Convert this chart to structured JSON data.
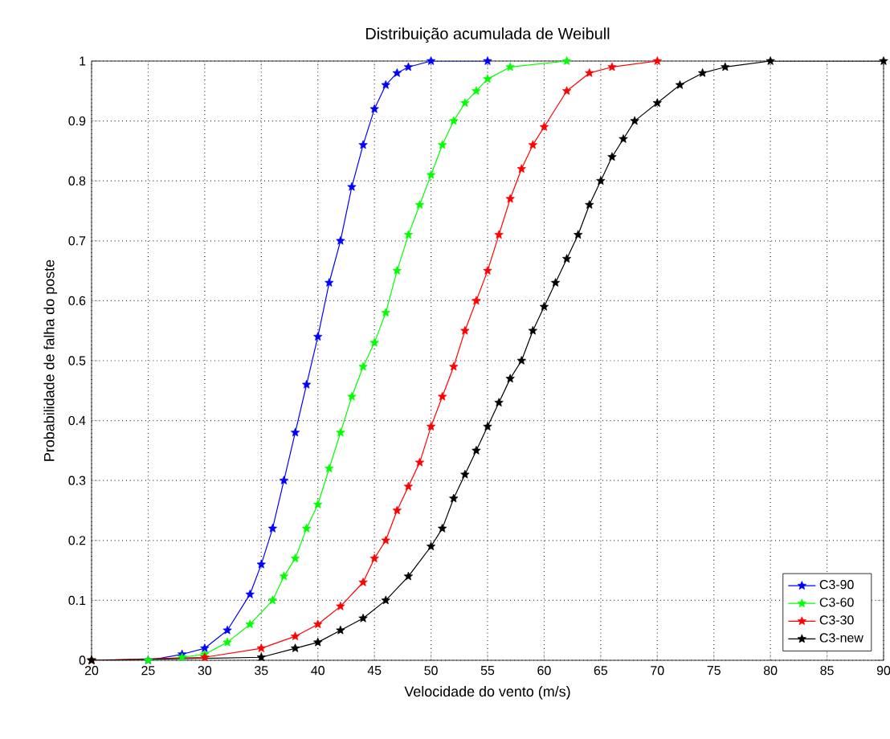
{
  "chart_data": {
    "type": "line",
    "title": "Distribuição acumulada de Weibull",
    "xlabel": "Velocidade do vento (m/s)",
    "ylabel": "Probabilidade de falha do poste",
    "xlim": [
      20,
      90
    ],
    "xticks": [
      20,
      25,
      30,
      35,
      40,
      45,
      50,
      55,
      60,
      65,
      70,
      75,
      80,
      85,
      90
    ],
    "ylim": [
      0,
      1
    ],
    "yticks": [
      0,
      0.1,
      0.2,
      0.3,
      0.4,
      0.5,
      0.6,
      0.7,
      0.8,
      0.9,
      1
    ],
    "grid": true,
    "legend": "bottom right",
    "marker": "star",
    "line_style": "solid",
    "series": [
      {
        "name": "C3-90",
        "color": "#0000ff",
        "x": [
          20,
          25,
          28,
          30,
          32,
          34,
          35,
          36,
          37,
          38,
          39,
          40,
          41,
          42,
          43,
          44,
          45,
          46,
          47,
          48,
          50,
          55
        ],
        "values": [
          0,
          0,
          0.01,
          0.02,
          0.05,
          0.11,
          0.16,
          0.22,
          0.3,
          0.38,
          0.46,
          0.54,
          0.63,
          0.7,
          0.79,
          0.86,
          0.92,
          0.96,
          0.98,
          0.99,
          1,
          1
        ]
      },
      {
        "name": "C3-60",
        "color": "#00ff00",
        "x": [
          20,
          25,
          28,
          30,
          32,
          34,
          36,
          37,
          38,
          39,
          40,
          41,
          42,
          43,
          44,
          45,
          46,
          47,
          48,
          49,
          50,
          51,
          52,
          53,
          54,
          55,
          57,
          62
        ],
        "values": [
          0,
          0,
          0.005,
          0.01,
          0.03,
          0.06,
          0.1,
          0.14,
          0.17,
          0.22,
          0.26,
          0.32,
          0.38,
          0.44,
          0.49,
          0.53,
          0.58,
          0.65,
          0.71,
          0.76,
          0.81,
          0.86,
          0.9,
          0.93,
          0.95,
          0.97,
          0.99,
          1
        ]
      },
      {
        "name": "C3-30",
        "color": "#ff0000",
        "x": [
          20,
          30,
          35,
          38,
          40,
          42,
          44,
          45,
          46,
          47,
          48,
          49,
          50,
          51,
          52,
          53,
          54,
          55,
          56,
          57,
          58,
          59,
          60,
          62,
          64,
          66,
          70
        ],
        "values": [
          0,
          0.005,
          0.02,
          0.04,
          0.06,
          0.09,
          0.13,
          0.17,
          0.2,
          0.25,
          0.29,
          0.33,
          0.39,
          0.44,
          0.49,
          0.55,
          0.6,
          0.65,
          0.71,
          0.77,
          0.82,
          0.86,
          0.89,
          0.95,
          0.98,
          0.99,
          1
        ]
      },
      {
        "name": "C3-new",
        "color": "#000000",
        "x": [
          20,
          35,
          38,
          40,
          42,
          44,
          46,
          48,
          50,
          51,
          52,
          53,
          54,
          55,
          56,
          57,
          58,
          59,
          60,
          61,
          62,
          63,
          64,
          65,
          66,
          67,
          68,
          70,
          72,
          74,
          76,
          80,
          90
        ],
        "values": [
          0,
          0.005,
          0.02,
          0.03,
          0.05,
          0.07,
          0.1,
          0.14,
          0.19,
          0.22,
          0.27,
          0.31,
          0.35,
          0.39,
          0.43,
          0.47,
          0.5,
          0.55,
          0.59,
          0.63,
          0.67,
          0.71,
          0.76,
          0.8,
          0.84,
          0.87,
          0.9,
          0.93,
          0.96,
          0.98,
          0.99,
          1,
          1
        ]
      }
    ]
  }
}
